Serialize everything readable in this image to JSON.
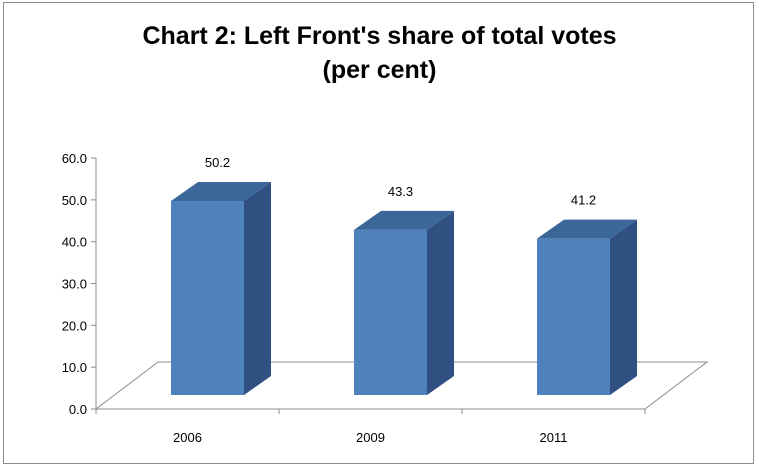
{
  "chart_data": {
    "type": "bar",
    "title": "Chart 2: Left Front's share of total votes",
    "subtitle": "(per cent)",
    "categories": [
      "2006",
      "2009",
      "2011"
    ],
    "values": [
      50.2,
      43.3,
      41.2
    ],
    "data_labels": [
      "50.2",
      "43.3",
      "41.2"
    ],
    "ylim": [
      0,
      60
    ],
    "yticks": [
      "0.0",
      "10.0",
      "20.0",
      "30.0",
      "40.0",
      "50.0",
      "60.0"
    ],
    "xlabel": "",
    "ylabel": "",
    "grid": false,
    "legend": "none",
    "style": "3d-column",
    "colors": {
      "bar_front": "#4f81bd",
      "bar_top": "#3a6698",
      "bar_side": "#2f5080",
      "floor": "#ffffff",
      "axis": "#8c8c8c"
    }
  }
}
